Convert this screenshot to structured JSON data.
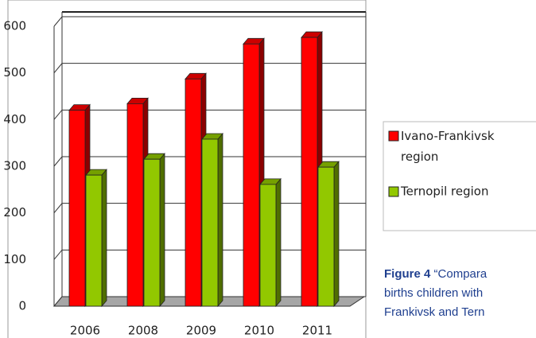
{
  "chart_data": {
    "type": "bar",
    "categories": [
      "2006",
      "2008",
      "2009",
      "2010",
      "2011"
    ],
    "series": [
      {
        "name": "Ivano-Frankivsk region",
        "color": "#ff0000",
        "values": [
          420,
          434,
          487,
          562,
          576
        ]
      },
      {
        "name": "Ternopil region",
        "color": "#92c800",
        "values": [
          281,
          315,
          358,
          261,
          298
        ]
      }
    ],
    "ylim": [
      0,
      600
    ],
    "yticks": [
      0,
      100,
      200,
      300,
      400,
      500,
      600
    ],
    "grid": true,
    "legend": "right"
  },
  "caption": {
    "label": "Figure 4",
    "lines": [
      "“Compara",
      "births children with",
      "Frankivsk and Tern"
    ]
  }
}
